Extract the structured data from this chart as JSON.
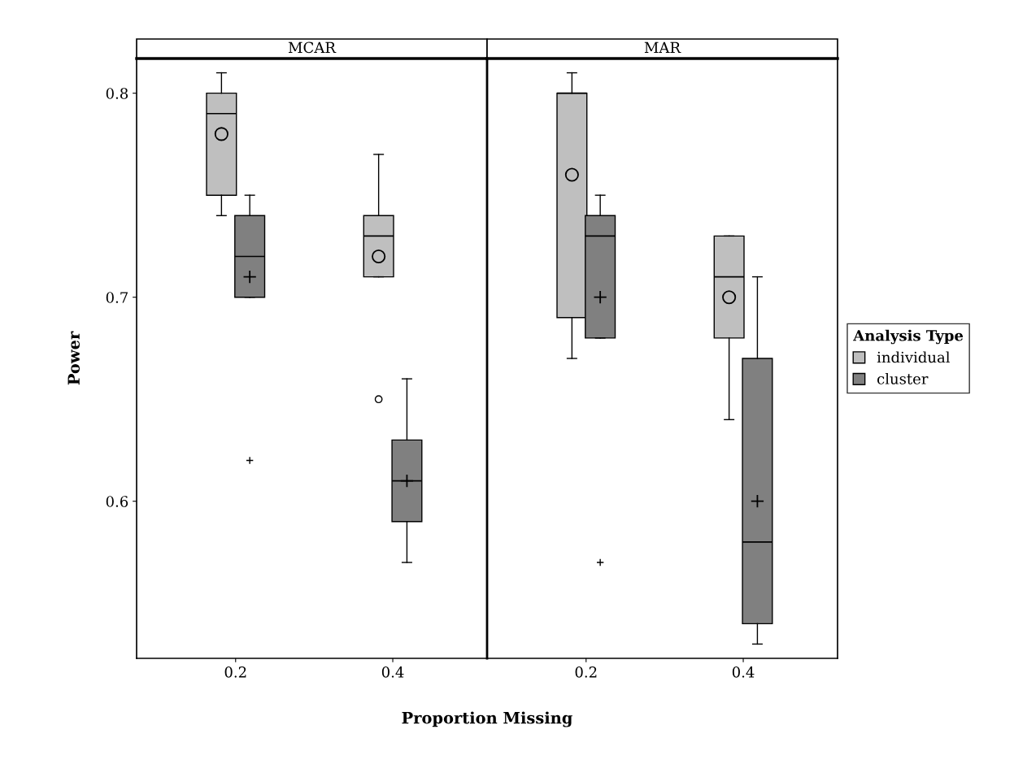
{
  "chart_data": [
    {
      "type": "box",
      "title": "MCAR",
      "ylabel": "Power",
      "xlabel": "Proportion Missing",
      "categories": [
        "0.2",
        "0.4"
      ],
      "ylim": [
        0.523,
        0.817
      ],
      "yticks": [
        0.6,
        0.7,
        0.8
      ],
      "grid": false,
      "series": [
        {
          "color": "#bfbfbf",
          "marker": "circle",
          "boxes": [
            {
              "low": 0.74,
              "q1": 0.75,
              "median": 0.79,
              "q3": 0.8,
              "high": 0.81,
              "mean": 0.78
            },
            {
              "low": 0.71,
              "q1": 0.71,
              "median": 0.73,
              "q3": 0.74,
              "high": 0.77,
              "mean": 0.72,
              "outliers": [
                0.65
              ]
            }
          ]
        },
        {
          "color": "#808080",
          "marker": "cross",
          "boxes": [
            {
              "low": 0.7,
              "q1": 0.7,
              "median": 0.72,
              "q3": 0.74,
              "high": 0.75,
              "mean": 0.71,
              "outliers": [
                0.62
              ]
            },
            {
              "low": 0.57,
              "q1": 0.59,
              "median": 0.61,
              "q3": 0.63,
              "high": 0.66,
              "mean": 0.61
            }
          ]
        }
      ]
    },
    {
      "type": "box",
      "title": "MAR",
      "categories": [
        "0.2",
        "0.4"
      ],
      "ylim": [
        0.523,
        0.817
      ],
      "yticks": [
        0.6,
        0.7,
        0.8
      ],
      "tick_labels": "x",
      "grid": false,
      "legend": "right",
      "legend_title": "Analysis Type",
      "series": [
        {
          "name": "individual",
          "color": "#bfbfbf",
          "marker": "circle",
          "boxes": [
            {
              "low": 0.67,
              "q1": 0.69,
              "median": 0.8,
              "q3": 0.8,
              "high": 0.81,
              "mean": 0.76
            },
            {
              "low": 0.64,
              "q1": 0.68,
              "median": 0.71,
              "q3": 0.73,
              "high": 0.73,
              "mean": 0.7
            }
          ]
        },
        {
          "name": "cluster",
          "color": "#808080",
          "marker": "cross",
          "boxes": [
            {
              "low": 0.68,
              "q1": 0.68,
              "median": 0.73,
              "q3": 0.74,
              "high": 0.75,
              "mean": 0.7,
              "outliers": [
                0.57
              ]
            },
            {
              "low": 0.53,
              "q1": 0.54,
              "median": 0.58,
              "q3": 0.67,
              "high": 0.71,
              "mean": 0.6
            }
          ]
        }
      ]
    }
  ]
}
